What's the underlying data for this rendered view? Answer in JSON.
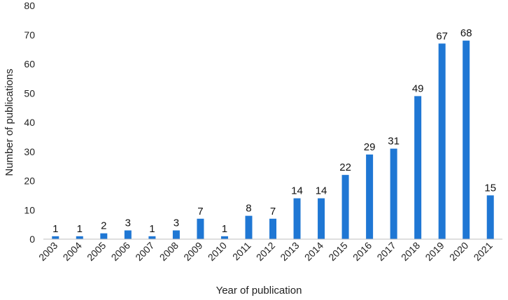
{
  "chart_data": {
    "type": "bar",
    "categories": [
      "2003",
      "2004",
      "2005",
      "2006",
      "2007",
      "2008",
      "2009",
      "2010",
      "2011",
      "2012",
      "2013",
      "2014",
      "2015",
      "2016",
      "2017",
      "2018",
      "2019",
      "2020",
      "2021"
    ],
    "values": [
      1,
      1,
      2,
      3,
      1,
      3,
      7,
      1,
      8,
      7,
      14,
      14,
      22,
      29,
      31,
      49,
      67,
      68,
      15
    ],
    "xlabel": "Year of publication",
    "ylabel": "Number of publications",
    "ylim": [
      0,
      80
    ],
    "yticks": [
      0,
      10,
      20,
      30,
      40,
      50,
      60,
      70,
      80
    ],
    "grid": false,
    "legend": "none",
    "bar_color": "#1f77d4"
  }
}
